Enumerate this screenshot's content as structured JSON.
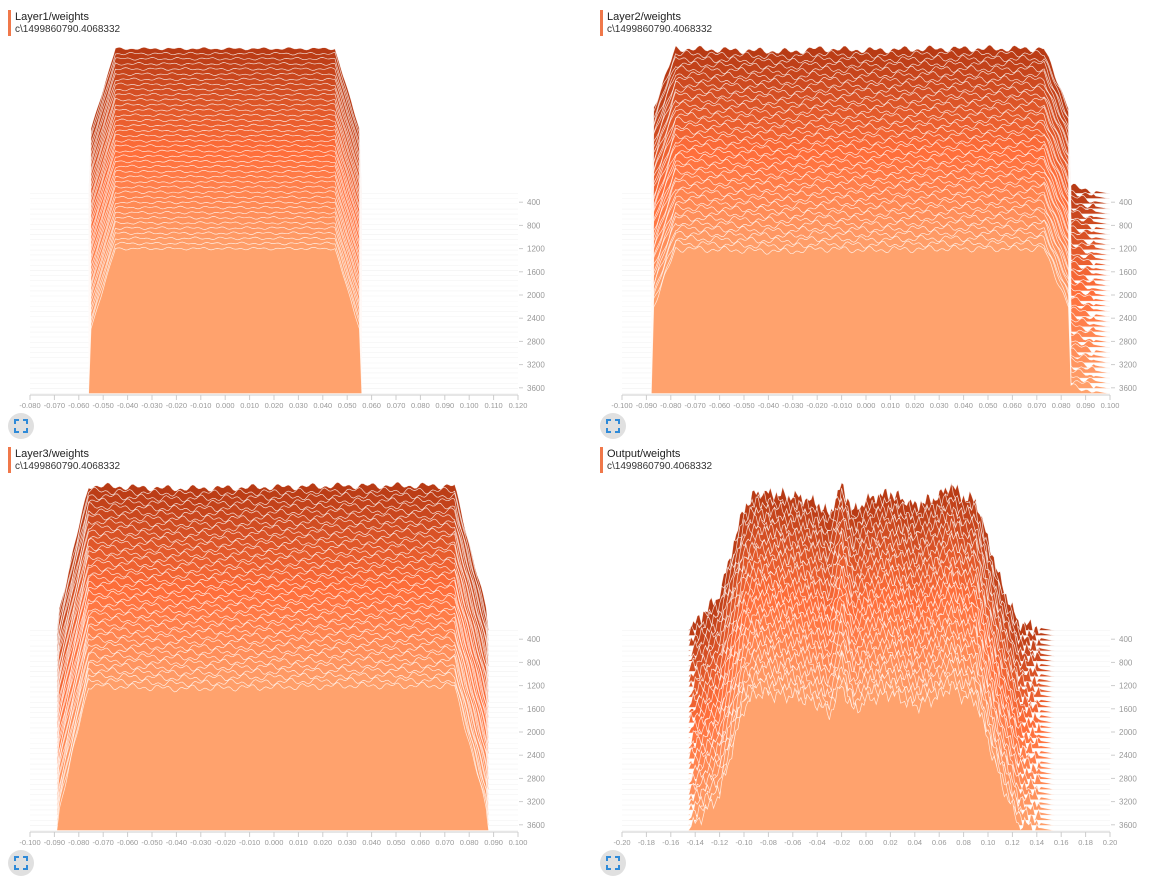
{
  "colors": {
    "oldest": "#b83a14",
    "middle": "#ff6e3a",
    "newest": "#ffa26d",
    "accent": "#f0784a",
    "icon": "#2f8ad8"
  },
  "chart_data": [
    {
      "type": "histogram-ridgeline",
      "title": "Layer1/weights",
      "subtitle": "c\\1499860790.4068332",
      "xlim": [
        -0.08,
        0.12
      ],
      "xstep": 0.01,
      "xdecimals": 3,
      "ytick_labels": [
        "400",
        "800",
        "1200",
        "1600",
        "2000",
        "2400",
        "2800",
        "3200",
        "3600"
      ],
      "steps_range": [
        250,
        3700
      ],
      "num_histograms": 40,
      "profile": [
        [
          -0.08,
          0
        ],
        [
          -0.056,
          0
        ],
        [
          -0.055,
          0.45
        ],
        [
          -0.045,
          1
        ],
        [
          0.045,
          1
        ],
        [
          0.055,
          0.45
        ],
        [
          0.056,
          0
        ],
        [
          0.12,
          0
        ]
      ],
      "noise": 0.01
    },
    {
      "type": "histogram-ridgeline",
      "title": "Layer2/weights",
      "subtitle": "c\\1499860790.4068332",
      "xlim": [
        -0.1,
        0.1
      ],
      "xstep": 0.01,
      "xdecimals": 3,
      "ytick_labels": [
        "400",
        "800",
        "1200",
        "1600",
        "2000",
        "2400",
        "2800",
        "3200",
        "3600"
      ],
      "steps_range": [
        250,
        3700
      ],
      "num_histograms": 40,
      "profile": [
        [
          -0.1,
          0
        ],
        [
          -0.088,
          0
        ],
        [
          -0.087,
          0.6
        ],
        [
          -0.078,
          1
        ],
        [
          -0.03,
          0.98
        ],
        [
          -0.02,
          1
        ],
        [
          0,
          0.99
        ],
        [
          0.03,
          1
        ],
        [
          0.073,
          1
        ],
        [
          0.083,
          0.6
        ],
        [
          0.084,
          0.05
        ],
        [
          0.1,
          0
        ]
      ],
      "noise": 0.025
    },
    {
      "type": "histogram-ridgeline",
      "title": "Layer3/weights",
      "subtitle": "c\\1499860790.4068332",
      "xlim": [
        -0.1,
        0.1
      ],
      "xstep": 0.01,
      "xdecimals": 3,
      "ytick_labels": [
        "400",
        "800",
        "1200",
        "1600",
        "2000",
        "2400",
        "2800",
        "3200",
        "3600"
      ],
      "steps_range": [
        250,
        3700
      ],
      "num_histograms": 40,
      "profile": [
        [
          -0.1,
          0
        ],
        [
          -0.089,
          0
        ],
        [
          -0.088,
          0.15
        ],
        [
          -0.076,
          1
        ],
        [
          -0.04,
          0.98
        ],
        [
          0,
          0.99
        ],
        [
          0.03,
          1
        ],
        [
          0.074,
          1
        ],
        [
          0.087,
          0.15
        ],
        [
          0.088,
          0
        ],
        [
          0.1,
          0
        ]
      ],
      "noise": 0.025
    },
    {
      "type": "histogram-ridgeline",
      "title": "Output/weights",
      "subtitle": "c\\1499860790.4068332",
      "xlim": [
        -0.2,
        0.2
      ],
      "xstep": 0.02,
      "xdecimals": 2,
      "ytick_labels": [
        "400",
        "800",
        "1200",
        "1600",
        "2000",
        "2400",
        "2800",
        "3200",
        "3600"
      ],
      "steps_range": [
        250,
        3700
      ],
      "num_histograms": 40,
      "profile": [
        [
          -0.2,
          0
        ],
        [
          -0.146,
          0
        ],
        [
          -0.14,
          0.05
        ],
        [
          -0.12,
          0.25
        ],
        [
          -0.1,
          0.85
        ],
        [
          -0.09,
          0.95
        ],
        [
          -0.06,
          0.93
        ],
        [
          -0.04,
          0.88
        ],
        [
          -0.03,
          0.8
        ],
        [
          -0.02,
          1.0
        ],
        [
          -0.01,
          0.82
        ],
        [
          0,
          0.9
        ],
        [
          0.02,
          0.95
        ],
        [
          0.04,
          0.86
        ],
        [
          0.06,
          0.93
        ],
        [
          0.07,
          1.0
        ],
        [
          0.08,
          0.92
        ],
        [
          0.09,
          0.9
        ],
        [
          0.11,
          0.35
        ],
        [
          0.125,
          0.05
        ],
        [
          0.155,
          0
        ],
        [
          0.2,
          0
        ]
      ],
      "noise": 0.06
    }
  ]
}
